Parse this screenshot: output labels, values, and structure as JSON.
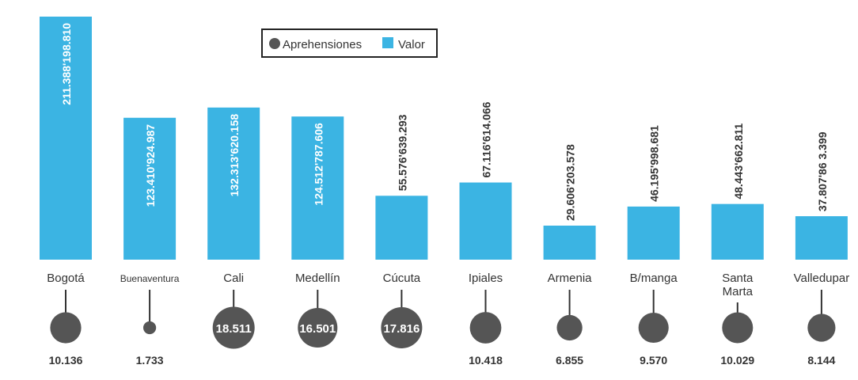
{
  "chart_data": {
    "type": "bar",
    "categories": [
      "Bogotá",
      "Buenaventura",
      "Cali",
      "Medellín",
      "Cúcuta",
      "Ipiales",
      "Armenia",
      "B/manga",
      "Santa Marta",
      "Valledupar"
    ],
    "series": [
      {
        "name": "Valor",
        "values": [
          211388198810,
          123410924987,
          132313620158,
          124512787606,
          55576639293,
          67116614066,
          29606203578,
          46195998681,
          48443662811,
          37807863399
        ],
        "labels": [
          "211.388'198.810",
          "123.410'924.987",
          "132.313'620.158",
          "124.512'787.606",
          "55.576'639.293",
          "67.116'614.066",
          "29.606'203.578",
          "46.195'998.681",
          "48.443'662.811",
          "37.807'86 3.399"
        ]
      },
      {
        "name": "Aprehensiones",
        "values": [
          10136,
          1733,
          18511,
          16501,
          17816,
          10418,
          6855,
          9570,
          10029,
          8144
        ],
        "labels": [
          "10.136",
          "1.733",
          "18.511",
          "16.501",
          "17.816",
          "10.418",
          "6.855",
          "9.570",
          "10.029",
          "8.144"
        ]
      }
    ],
    "legend": {
      "position": "top-center",
      "items": [
        "Aprehensiones",
        "Valor"
      ]
    },
    "colors": {
      "bar": "#3bb4e3",
      "circle": "#555555",
      "text": "#333333",
      "stem": "#333333"
    },
    "ylim": [
      0,
      211388198810
    ]
  }
}
